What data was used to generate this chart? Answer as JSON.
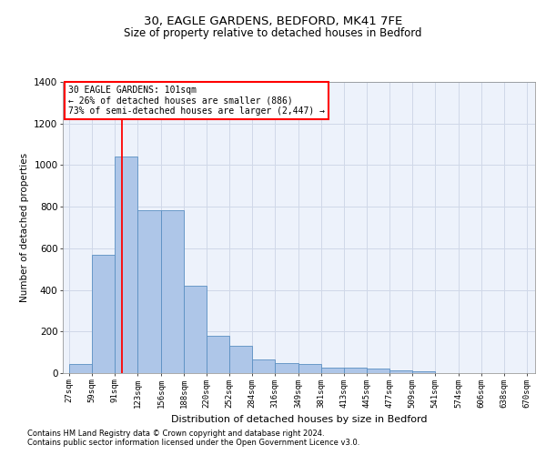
{
  "title_line1": "30, EAGLE GARDENS, BEDFORD, MK41 7FE",
  "title_line2": "Size of property relative to detached houses in Bedford",
  "xlabel": "Distribution of detached houses by size in Bedford",
  "ylabel": "Number of detached properties",
  "bar_left_edges": [
    27,
    59,
    91,
    123,
    156,
    188,
    220,
    252,
    284,
    316,
    349,
    381,
    413,
    445,
    477,
    509,
    541,
    574,
    606,
    638
  ],
  "bar_widths": [
    32,
    32,
    32,
    33,
    32,
    32,
    32,
    32,
    32,
    33,
    32,
    32,
    32,
    32,
    32,
    32,
    33,
    32,
    32,
    32
  ],
  "bar_heights": [
    45,
    570,
    1040,
    785,
    785,
    420,
    180,
    130,
    65,
    50,
    45,
    28,
    28,
    20,
    15,
    10,
    0,
    0,
    0,
    0
  ],
  "bar_color": "#aec6e8",
  "bar_edgecolor": "#5a8fc2",
  "xtick_labels": [
    "27sqm",
    "59sqm",
    "91sqm",
    "123sqm",
    "156sqm",
    "188sqm",
    "220sqm",
    "252sqm",
    "284sqm",
    "316sqm",
    "349sqm",
    "381sqm",
    "413sqm",
    "445sqm",
    "477sqm",
    "509sqm",
    "541sqm",
    "574sqm",
    "606sqm",
    "638sqm",
    "670sqm"
  ],
  "ylim": [
    0,
    1400
  ],
  "yticks": [
    0,
    200,
    400,
    600,
    800,
    1000,
    1200,
    1400
  ],
  "grid_color": "#d0d8e8",
  "bg_color": "#edf2fb",
  "red_line_x": 101,
  "annotation_box_text": "30 EAGLE GARDENS: 101sqm\n← 26% of detached houses are smaller (886)\n73% of semi-detached houses are larger (2,447) →",
  "footnote1": "Contains HM Land Registry data © Crown copyright and database right 2024.",
  "footnote2": "Contains public sector information licensed under the Open Government Licence v3.0."
}
